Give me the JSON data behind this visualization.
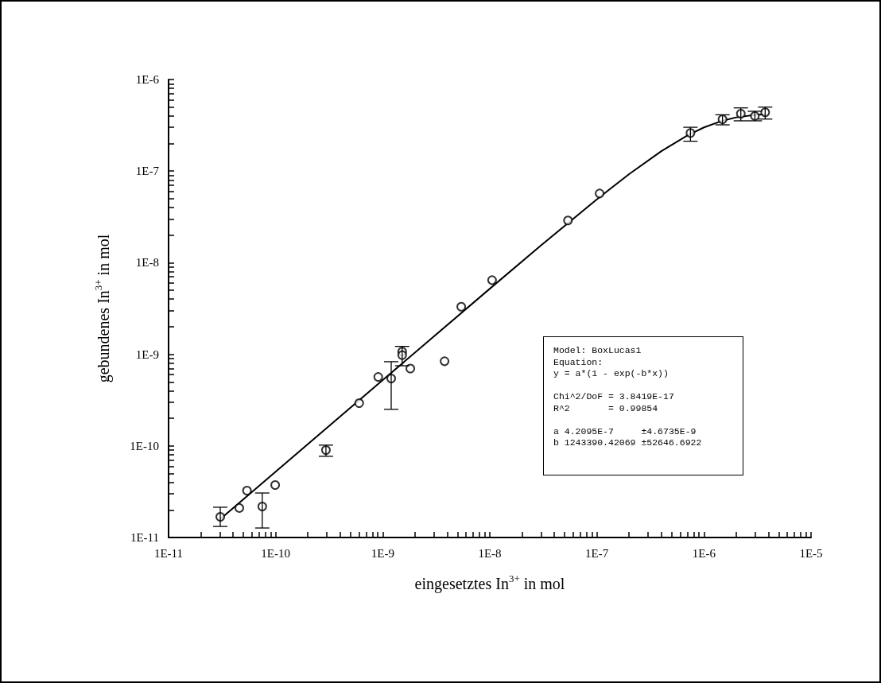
{
  "chart_data": {
    "type": "scatter",
    "xlabel": "eingesetztes In$^{3+}$ in mol",
    "ylabel": "gebundenes In$^{3+}$ in mol",
    "log": "xy",
    "grid": false,
    "xlim": [
      1e-11,
      1e-05
    ],
    "ylim": [
      1e-11,
      1e-06
    ],
    "xticks": [
      {
        "value": 1e-11,
        "label": "1E-11"
      },
      {
        "value": 2e-11,
        "label": null
      },
      {
        "value": 3e-11,
        "label": null
      },
      {
        "value": 4e-11,
        "label": null
      },
      {
        "value": 5e-11,
        "label": null
      },
      {
        "value": 6e-11,
        "label": null
      },
      {
        "value": 7e-11,
        "label": null
      },
      {
        "value": 8e-11,
        "label": null
      },
      {
        "value": 9e-11,
        "label": null
      },
      {
        "value": 1e-10,
        "label": "1E-10"
      },
      {
        "value": 2e-10,
        "label": null
      },
      {
        "value": 3e-10,
        "label": null
      },
      {
        "value": 4e-10,
        "label": null
      },
      {
        "value": 5e-10,
        "label": null
      },
      {
        "value": 6e-10,
        "label": null
      },
      {
        "value": 7e-10,
        "label": null
      },
      {
        "value": 8e-10,
        "label": null
      },
      {
        "value": 9e-10,
        "label": null
      },
      {
        "value": 1e-09,
        "label": "1E-9"
      },
      {
        "value": 2e-09,
        "label": null
      },
      {
        "value": 3e-09,
        "label": null
      },
      {
        "value": 4e-09,
        "label": null
      },
      {
        "value": 5e-09,
        "label": null
      },
      {
        "value": 6e-09,
        "label": null
      },
      {
        "value": 7e-09,
        "label": null
      },
      {
        "value": 8e-09,
        "label": null
      },
      {
        "value": 9e-09,
        "label": null
      },
      {
        "value": 1e-08,
        "label": "1E-8"
      },
      {
        "value": 2e-08,
        "label": null
      },
      {
        "value": 3e-08,
        "label": null
      },
      {
        "value": 4e-08,
        "label": null
      },
      {
        "value": 5e-08,
        "label": null
      },
      {
        "value": 6e-08,
        "label": null
      },
      {
        "value": 7e-08,
        "label": null
      },
      {
        "value": 8e-08,
        "label": null
      },
      {
        "value": 9e-08,
        "label": null
      },
      {
        "value": 1e-07,
        "label": "1E-7"
      },
      {
        "value": 2e-07,
        "label": null
      },
      {
        "value": 3e-07,
        "label": null
      },
      {
        "value": 4e-07,
        "label": null
      },
      {
        "value": 5e-07,
        "label": null
      },
      {
        "value": 6e-07,
        "label": null
      },
      {
        "value": 7e-07,
        "label": null
      },
      {
        "value": 8e-07,
        "label": null
      },
      {
        "value": 9e-07,
        "label": null
      },
      {
        "value": 1e-06,
        "label": "1E-6"
      },
      {
        "value": 2e-06,
        "label": null
      },
      {
        "value": 3e-06,
        "label": null
      },
      {
        "value": 4e-06,
        "label": null
      },
      {
        "value": 5e-06,
        "label": null
      },
      {
        "value": 6e-06,
        "label": null
      },
      {
        "value": 7e-06,
        "label": null
      },
      {
        "value": 8e-06,
        "label": null
      },
      {
        "value": 9e-06,
        "label": null
      },
      {
        "value": 1e-05,
        "label": "1E-5"
      }
    ],
    "yticks": [
      {
        "value": 1e-11,
        "label": "1E-11"
      },
      {
        "value": 2e-11,
        "label": null
      },
      {
        "value": 3e-11,
        "label": null
      },
      {
        "value": 4e-11,
        "label": null
      },
      {
        "value": 5e-11,
        "label": null
      },
      {
        "value": 6e-11,
        "label": null
      },
      {
        "value": 7e-11,
        "label": null
      },
      {
        "value": 8e-11,
        "label": null
      },
      {
        "value": 9e-11,
        "label": null
      },
      {
        "value": 1e-10,
        "label": "1E-10"
      },
      {
        "value": 2e-10,
        "label": null
      },
      {
        "value": 3e-10,
        "label": null
      },
      {
        "value": 4e-10,
        "label": null
      },
      {
        "value": 5e-10,
        "label": null
      },
      {
        "value": 6e-10,
        "label": null
      },
      {
        "value": 7e-10,
        "label": null
      },
      {
        "value": 8e-10,
        "label": null
      },
      {
        "value": 9e-10,
        "label": null
      },
      {
        "value": 1e-09,
        "label": "1E-9"
      },
      {
        "value": 2e-09,
        "label": null
      },
      {
        "value": 3e-09,
        "label": null
      },
      {
        "value": 4e-09,
        "label": null
      },
      {
        "value": 5e-09,
        "label": null
      },
      {
        "value": 6e-09,
        "label": null
      },
      {
        "value": 7e-09,
        "label": null
      },
      {
        "value": 8e-09,
        "label": null
      },
      {
        "value": 9e-09,
        "label": null
      },
      {
        "value": 1e-08,
        "label": "1E-8"
      },
      {
        "value": 2e-08,
        "label": null
      },
      {
        "value": 3e-08,
        "label": null
      },
      {
        "value": 4e-08,
        "label": null
      },
      {
        "value": 5e-08,
        "label": null
      },
      {
        "value": 6e-08,
        "label": null
      },
      {
        "value": 7e-08,
        "label": null
      },
      {
        "value": 8e-08,
        "label": null
      },
      {
        "value": 9e-08,
        "label": null
      },
      {
        "value": 1e-07,
        "label": "1E-7"
      },
      {
        "value": 2e-07,
        "label": null
      },
      {
        "value": 3e-07,
        "label": null
      },
      {
        "value": 4e-07,
        "label": null
      },
      {
        "value": 5e-07,
        "label": null
      },
      {
        "value": 6e-07,
        "label": null
      },
      {
        "value": 7e-07,
        "label": null
      },
      {
        "value": 8e-07,
        "label": null
      },
      {
        "value": 9e-07,
        "label": null
      },
      {
        "value": 1e-06,
        "label": "1E-6"
      }
    ],
    "annotations": [
      "Model: BoxLucas1\nEquation:\ny = a*(1 - exp(-b*x))\n\nChi^2/DoF = 3.8419E-17\nR^2       = 0.99854\n\na 4.2095E-7     ±4.6735E-9\nb 1243390.42069 ±52646.6922"
    ],
    "series": [
      {
        "color": "#000000",
        "marker": "circle",
        "x": [
          3.04e-11,
          4.58e-11,
          5.4e-11,
          7.5e-11,
          9.9e-11,
          2.95e-10,
          6.03e-10,
          9.08e-10,
          1.2e-09,
          1.52e-09,
          1.52e-09,
          1.81e-09,
          3.78e-09,
          5.41e-09,
          1.05e-08,
          5.37e-08,
          1.06e-07,
          7.48e-07,
          1.49e-06,
          2.21e-06,
          2.99e-06,
          3.73e-06
        ],
        "values": [
          1.68e-11,
          2.1e-11,
          3.25e-11,
          2.18e-11,
          3.74e-11,
          9e-11,
          2.93e-10,
          5.66e-10,
          5.44e-10,
          1.07e-09,
          9.8e-10,
          7e-10,
          8.4e-10,
          3.31e-09,
          6.45e-09,
          2.89e-08,
          5.7e-08,
          2.61e-07,
          3.68e-07,
          4.23e-07,
          4e-07,
          4.38e-07
        ],
        "errors": [
          [
            1.32e-11,
            2.14e-11
          ],
          null,
          null,
          [
            1.27e-11,
            3.06e-11
          ],
          null,
          [
            7.7e-11,
            1.02e-10
          ],
          null,
          null,
          [
            2.51e-10,
            8.3e-10
          ],
          null,
          [
            7.5e-10,
            1.22e-09
          ],
          null,
          null,
          null,
          null,
          null,
          null,
          [
            2.12e-07,
            3.01e-07
          ],
          [
            3.2e-07,
            4.12e-07
          ],
          [
            3.54e-07,
            4.9e-07
          ],
          [
            3.54e-07,
            4.5e-07
          ],
          [
            3.7e-07,
            5e-07
          ]
        ]
      },
      {
        "type": "line",
        "color": "#000000",
        "marker": "none",
        "line_style": "solid",
        "x": [
          3e-11,
          1e-10,
          1e-09,
          1e-08,
          3e-08,
          1e-07,
          2e-07,
          4e-07,
          7e-07,
          1e-06,
          1.5e-06,
          2e-06,
          3e-06,
          3.8e-06
        ],
        "values": [
          1.57e-11,
          5.23e-11,
          5.23e-10,
          5.2e-09,
          1.54e-08,
          4.92e-08,
          9.27e-08,
          1.65e-07,
          2.45e-07,
          3e-07,
          3.56e-07,
          3.86e-07,
          4.11e-07,
          4.17e-07
        ]
      }
    ]
  }
}
